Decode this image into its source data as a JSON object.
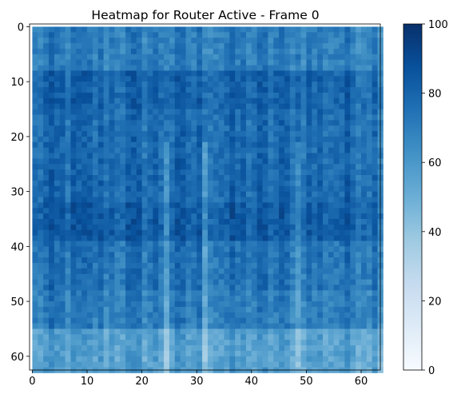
{
  "chart_data": {
    "type": "heatmap",
    "title": "Heatmap for Router Active - Frame 0",
    "xlabel": "",
    "ylabel": "",
    "rows": 63,
    "cols": 64,
    "xlim": [
      -0.5,
      63.5
    ],
    "ylim": [
      62.5,
      -0.5
    ],
    "x_ticks": [
      0,
      10,
      20,
      30,
      40,
      50,
      60
    ],
    "y_ticks": [
      0,
      10,
      20,
      30,
      40,
      50,
      60
    ],
    "colorbar": {
      "vmin": 0,
      "vmax": 100,
      "ticks": [
        0,
        20,
        40,
        60,
        80,
        100
      ],
      "colormap": "Blues",
      "color_stops": [
        "#f7fbff",
        "#deebf7",
        "#c6dbef",
        "#9ecae1",
        "#6baed6",
        "#4292c6",
        "#2171b5",
        "#08519c",
        "#08306b"
      ]
    },
    "row_bands": [
      {
        "rows": [
          0,
          7
        ],
        "mean_value": 70
      },
      {
        "rows": [
          8,
          14
        ],
        "mean_value": 80
      },
      {
        "rows": [
          15,
          23
        ],
        "mean_value": 77
      },
      {
        "rows": [
          24,
          31
        ],
        "mean_value": 78
      },
      {
        "rows": [
          32,
          38
        ],
        "mean_value": 82
      },
      {
        "rows": [
          39,
          47
        ],
        "mean_value": 74
      },
      {
        "rows": [
          48,
          54
        ],
        "mean_value": 70
      },
      {
        "rows": [
          55,
          62
        ],
        "mean_value": 56
      }
    ],
    "light_columns": [
      24,
      31,
      48
    ]
  }
}
